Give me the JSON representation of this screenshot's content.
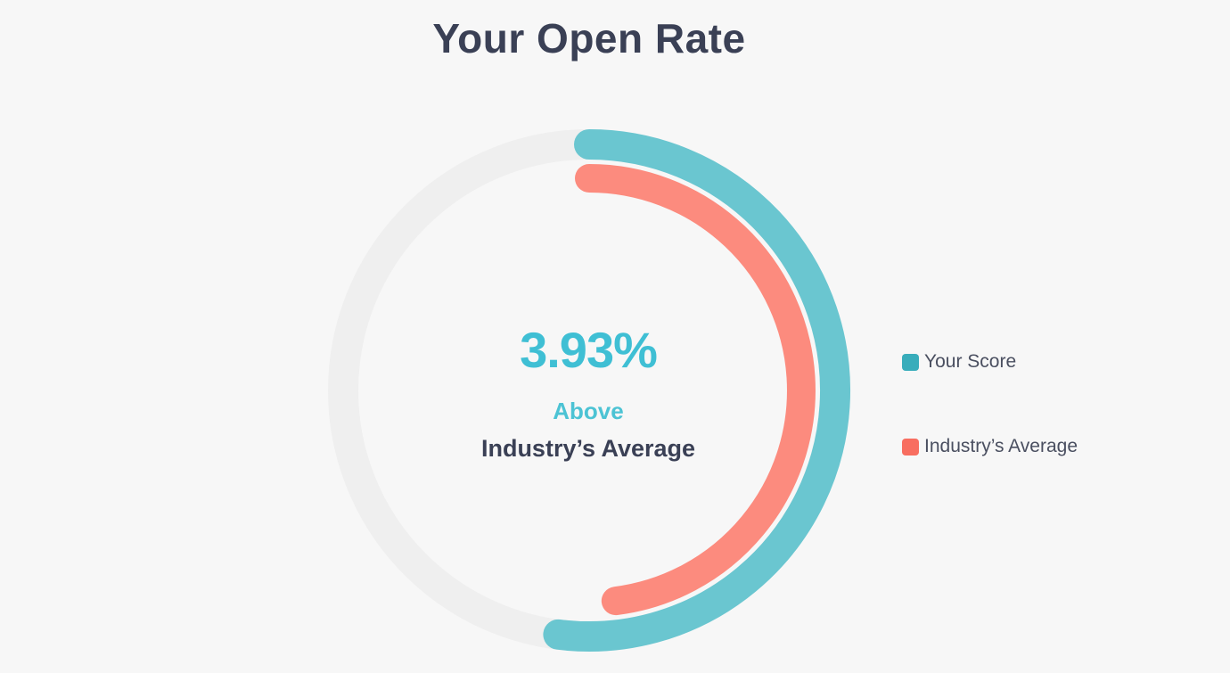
{
  "chart_data": {
    "type": "radial-bar",
    "title": "Your Open Rate",
    "center": {
      "value": "3.93%",
      "status": "Above",
      "label": "Industry’s Average"
    },
    "series": [
      {
        "name": "Your Score",
        "fraction_of_circle": 0.52,
        "color": "#6ac6d0"
      },
      {
        "name": "Industry’s Average",
        "fraction_of_circle": 0.48,
        "color": "#fc8b7e"
      }
    ],
    "track_color": "#efefef",
    "legend": {
      "placement": "right",
      "items": [
        {
          "label": "Your Score",
          "color": "#38adbb"
        },
        {
          "label": "Industry’s Average",
          "color": "#f86e60"
        }
      ]
    }
  }
}
